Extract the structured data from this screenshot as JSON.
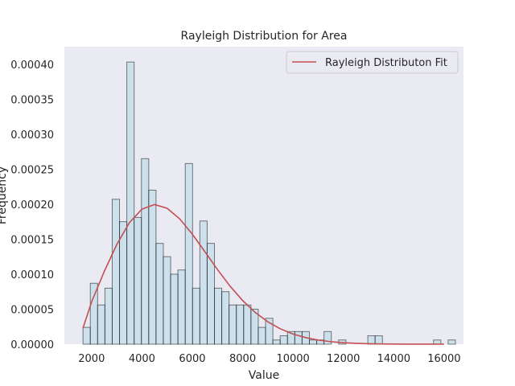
{
  "chart_data": {
    "type": "bar",
    "title": "Rayleigh Distribution for Area",
    "xlabel": "Value",
    "ylabel": "Frequency",
    "xlim": [
      920,
      16770
    ],
    "ylim": [
      0,
      0.000425
    ],
    "xticks": [
      2000,
      4000,
      6000,
      8000,
      10000,
      12000,
      14000,
      16000
    ],
    "xtick_labels": [
      "2000",
      "4000",
      "6000",
      "8000",
      "10000",
      "12000",
      "14000",
      "16000"
    ],
    "yticks": [
      0,
      5e-05,
      0.0001,
      0.00015,
      0.0002,
      0.00025,
      0.0003,
      0.00035,
      0.0004
    ],
    "ytick_labels": [
      "0.00000",
      "0.00005",
      "0.00010",
      "0.00015",
      "0.00020",
      "0.00025",
      "0.00030",
      "0.00035",
      "0.00040"
    ],
    "grid": false,
    "legend": {
      "entries": [
        "Rayleigh Distributon Fit"
      ],
      "placement": "top-right"
    },
    "colors": {
      "plot_background": "#eaeaf2",
      "bar_fill": "#add8e6",
      "bar_edge": "#000000",
      "fit_line": "#c44e52"
    },
    "histogram": {
      "bin_start": 1660,
      "bin_width": 290,
      "densities": [
        2.4e-05,
        8.7e-05,
        5.6e-05,
        8e-05,
        0.000207,
        0.000175,
        0.000403,
        0.000181,
        0.000265,
        0.00022,
        0.000144,
        0.000125,
        0.0001,
        0.000106,
        0.000258,
        8e-05,
        0.000176,
        0.000144,
        8e-05,
        7.5e-05,
        5.6e-05,
        5.6e-05,
        5.6e-05,
        5e-05,
        2.4e-05,
        3.7e-05,
        6e-06,
        1.2e-05,
        1.8e-05,
        1.8e-05,
        1.8e-05,
        6e-06,
        6e-06,
        1.8e-05,
        0.0,
        6e-06,
        0.0,
        0.0,
        0.0,
        1.2e-05,
        1.2e-05,
        0.0,
        0.0,
        0.0,
        0.0,
        0.0,
        0.0,
        0.0,
        6e-06,
        0.0,
        6e-06
      ]
    },
    "series": [
      {
        "name": "Rayleigh Distributon Fit",
        "type": "line",
        "x": [
          1660,
          2000,
          2500,
          3000,
          3500,
          4000,
          4500,
          5000,
          5500,
          6000,
          6500,
          7000,
          7500,
          8000,
          8500,
          9000,
          9500,
          10000,
          10500,
          11000,
          11500,
          12000,
          12500,
          13000,
          13500,
          14000,
          14500,
          15000,
          15500,
          16000
        ],
        "y": [
          2.3e-05,
          6.03e-05,
          0.0001036,
          0.0001423,
          0.0001735,
          0.0001929,
          0.0001995,
          0.0001941,
          0.000179,
          0.0001572,
          0.0001321,
          0.0001066,
          8.29e-05,
          6.23e-05,
          4.53e-05,
          3.2e-05,
          2.19e-05,
          1.45e-05,
          9.4e-06,
          5.9e-06,
          3.6e-06,
          2.1e-06,
          1.2e-06,
          7e-07,
          4e-07,
          2e-07,
          1e-07,
          5e-08,
          2e-08,
          1e-08
        ]
      }
    ]
  }
}
